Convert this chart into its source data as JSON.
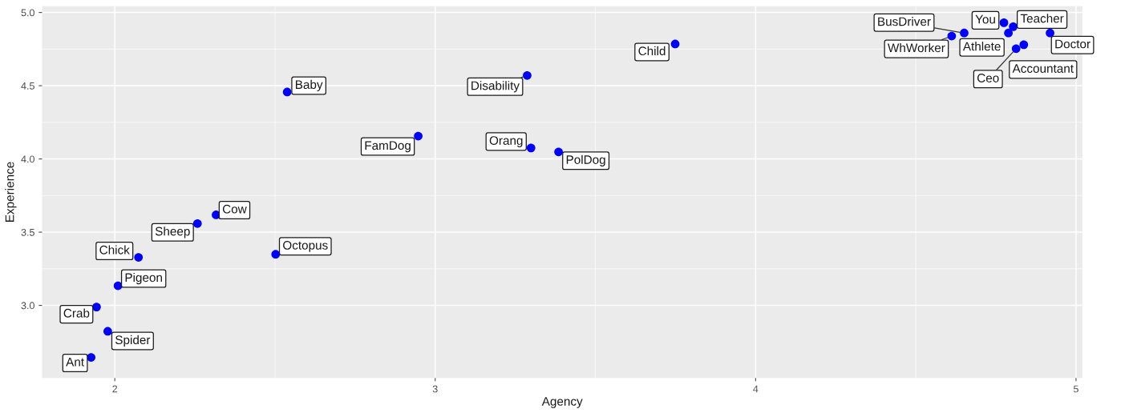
{
  "chart_data": {
    "type": "scatter",
    "xlabel": "Agency",
    "ylabel": "Experience",
    "xlim": [
      1.773,
      5.02
    ],
    "ylim": [
      2.505,
      5.043
    ],
    "xticks": [
      2,
      3,
      4,
      5
    ],
    "yticks": [
      {
        "value": 3,
        "label": "3.0"
      },
      {
        "value": 3.5,
        "label": "3.5"
      },
      {
        "value": 4,
        "label": "4.0"
      },
      {
        "value": 4.5,
        "label": "4.5"
      },
      {
        "value": 5,
        "label": "5.0"
      }
    ],
    "grid": true,
    "legend": false,
    "marker": "circle",
    "series": [
      {
        "name": "Ant",
        "color": "#0000ff",
        "x": [
          1.926
        ],
        "values": [
          2.645
        ]
      },
      {
        "name": "Spider",
        "color": "#0000ff",
        "x": [
          1.978
        ],
        "values": [
          2.823
        ]
      },
      {
        "name": "Crab",
        "color": "#0000ff",
        "x": [
          1.943
        ],
        "values": [
          2.989
        ]
      },
      {
        "name": "Pigeon",
        "color": "#0000ff",
        "x": [
          2.01
        ],
        "values": [
          3.134
        ]
      },
      {
        "name": "Chick",
        "color": "#0000ff",
        "x": [
          2.074
        ],
        "values": [
          3.328
        ]
      },
      {
        "name": "Sheep",
        "color": "#0000ff",
        "x": [
          2.258
        ],
        "values": [
          3.559
        ]
      },
      {
        "name": "Cow",
        "color": "#0000ff",
        "x": [
          2.316
        ],
        "values": [
          3.618
        ]
      },
      {
        "name": "Octopus",
        "color": "#0000ff",
        "x": [
          2.502
        ],
        "values": [
          3.349
        ]
      },
      {
        "name": "Baby",
        "color": "#0000ff",
        "x": [
          2.538
        ],
        "values": [
          4.457
        ]
      },
      {
        "name": "FamDog",
        "color": "#0000ff",
        "x": [
          2.947
        ],
        "values": [
          4.156
        ]
      },
      {
        "name": "Disability",
        "color": "#0000ff",
        "x": [
          3.287
        ],
        "values": [
          4.57
        ]
      },
      {
        "name": "Orang",
        "color": "#0000ff",
        "x": [
          3.299
        ],
        "values": [
          4.075
        ]
      },
      {
        "name": "PolDog",
        "color": "#0000ff",
        "x": [
          3.385
        ],
        "values": [
          4.048
        ]
      },
      {
        "name": "Child",
        "color": "#0000ff",
        "x": [
          3.749
        ],
        "values": [
          4.785
        ]
      },
      {
        "name": "WhWorker",
        "color": "#0000ff",
        "x": [
          4.612
        ],
        "values": [
          4.839
        ]
      },
      {
        "name": "BusDriver",
        "color": "#0000ff",
        "x": [
          4.651
        ],
        "values": [
          4.86
        ]
      },
      {
        "name": "Athlete",
        "color": "#0000ff",
        "x": [
          4.789
        ],
        "values": [
          4.86
        ]
      },
      {
        "name": "Teacher",
        "color": "#0000ff",
        "x": [
          4.804
        ],
        "values": [
          4.903
        ]
      },
      {
        "name": "You",
        "color": "#0000ff",
        "x": [
          4.775
        ],
        "values": [
          4.93
        ]
      },
      {
        "name": "Ceo",
        "color": "#0000ff",
        "x": [
          4.813
        ],
        "values": [
          4.753
        ]
      },
      {
        "name": "Accountant",
        "color": "#0000ff",
        "x": [
          4.837
        ],
        "values": [
          4.78
        ]
      },
      {
        "name": "Doctor",
        "color": "#0000ff",
        "x": [
          4.919
        ],
        "values": [
          4.86
        ]
      }
    ]
  }
}
